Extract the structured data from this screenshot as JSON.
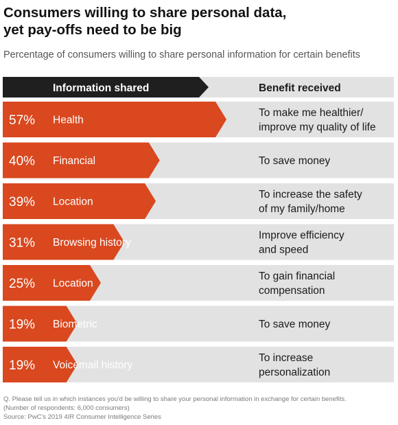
{
  "title_line1": "Consumers willing to share personal data,",
  "title_line2": "yet pay-offs need to be big",
  "subtitle": "Percentage of consumers willing to share personal information for certain benefits",
  "header": {
    "information_shared": "Information shared",
    "benefit_received": "Benefit received"
  },
  "colors": {
    "accent": "#d9481f",
    "header_bg": "#1f1f1f",
    "row_bg": "#e2e2e2"
  },
  "chart_data": {
    "type": "bar",
    "orientation": "horizontal",
    "unit": "%",
    "xlim": [
      0,
      57
    ],
    "rows": [
      {
        "value": 57,
        "label_pct": "57%",
        "category": "Health",
        "benefit": [
          "To make me healthier/",
          "improve my quality of life"
        ]
      },
      {
        "value": 40,
        "label_pct": "40%",
        "category": "Financial",
        "benefit": [
          "To save money"
        ]
      },
      {
        "value": 39,
        "label_pct": "39%",
        "category": "Location",
        "benefit": [
          "To increase the safety",
          "of my family/home"
        ]
      },
      {
        "value": 31,
        "label_pct": "31%",
        "category": "Browsing history",
        "benefit": [
          "Improve efficiency",
          "and speed"
        ]
      },
      {
        "value": 25,
        "label_pct": "25%",
        "category": "Location",
        "benefit": [
          "To gain financial",
          "compensation"
        ]
      },
      {
        "value": 19,
        "label_pct": "19%",
        "category": "Biometric",
        "benefit": [
          "To save money"
        ]
      },
      {
        "value": 19,
        "label_pct": "19%",
        "category": "Voicemail history",
        "benefit": [
          "To increase",
          "personalization"
        ]
      }
    ]
  },
  "footnote": {
    "question": "Q. Please tell us in which instances you'd be willing to share your personal information in exchange for certain benefits.",
    "respondents": "(Number of respondents: 6,000 consumers)",
    "source": "Source: PwC's 2019 4IR Consumer Intelligence Series"
  }
}
